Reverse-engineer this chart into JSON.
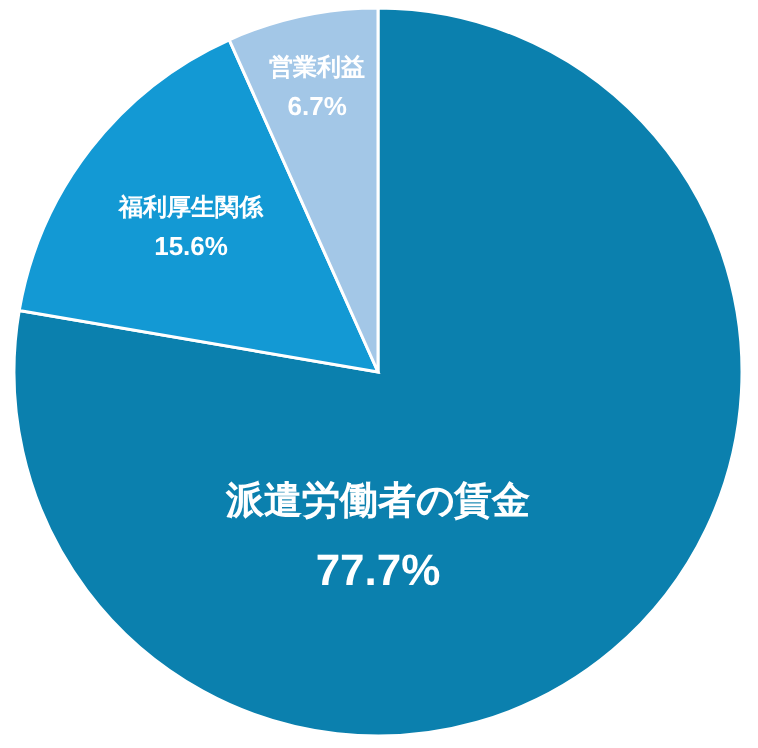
{
  "chart_data": {
    "type": "pie",
    "categories": [
      "派遣労働者の賃金",
      "福利厚生関係",
      "営業利益"
    ],
    "values": [
      77.7,
      15.6,
      6.7
    ],
    "value_labels": [
      "77.7%",
      "15.6%",
      "6.7%"
    ],
    "colors": [
      "#0b80ae",
      "#1399d4",
      "#a3c7e7"
    ]
  }
}
